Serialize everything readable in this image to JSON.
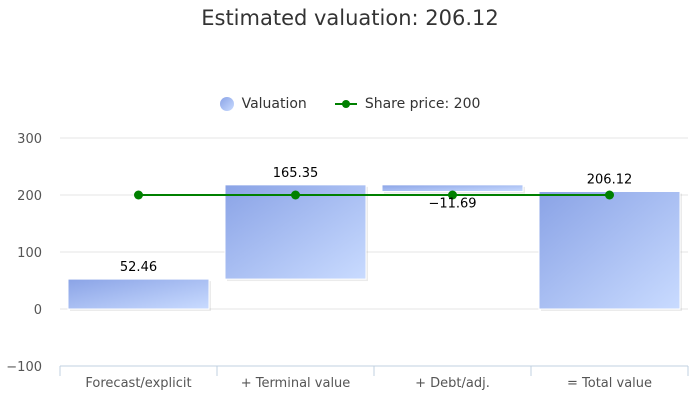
{
  "chart_data": {
    "type": "bar",
    "title": "Estimated valuation: 206.12",
    "categories": [
      "Forecast/explicit",
      "+ Terminal value",
      "+ Debt/adj.",
      "= Total value"
    ],
    "series": [
      {
        "name": "Valuation",
        "type": "waterfall-bar",
        "values": [
          52.46,
          165.35,
          -11.69,
          206.12
        ],
        "labels": [
          "52.46",
          "165.35",
          "−11.69",
          "206.12"
        ]
      },
      {
        "name": "Share price: 200",
        "type": "line",
        "values": [
          200,
          200,
          200,
          200
        ]
      }
    ],
    "yticks": [
      -100,
      0,
      100,
      200,
      300
    ],
    "ytick_labels": [
      "−100",
      "0",
      "100",
      "200",
      "300"
    ],
    "ylim": [
      -100,
      300
    ],
    "xlabel": "",
    "ylabel": "",
    "grid": true,
    "legend": "top-center",
    "colors": {
      "bar_start": "#8aa3e6",
      "bar_end": "#c9dbff",
      "line": "#008000",
      "grid": "#e6e6e6",
      "axis": "#c0d0e0"
    }
  }
}
